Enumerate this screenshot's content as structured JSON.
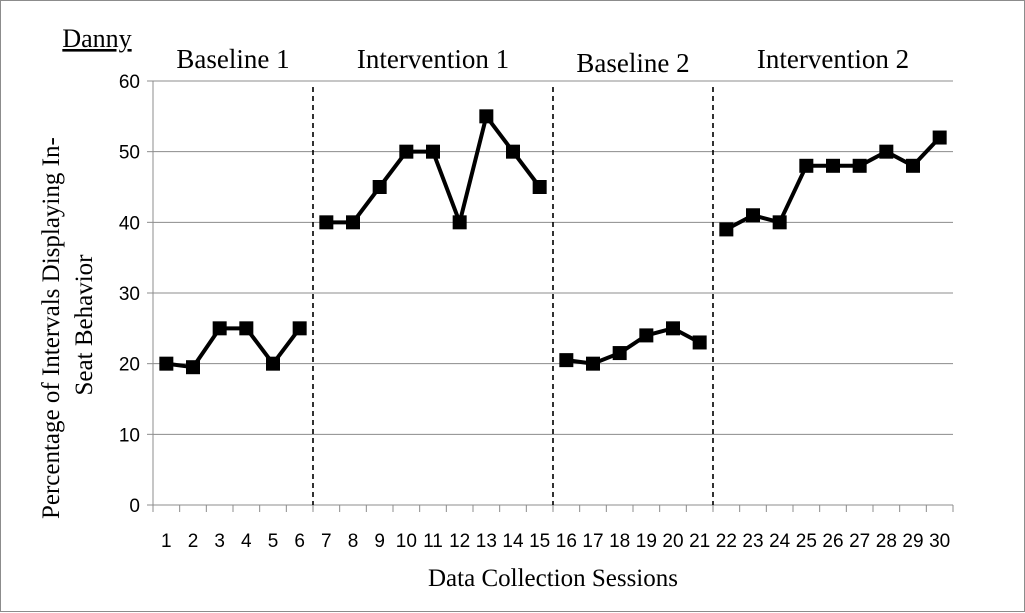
{
  "chart_data": {
    "type": "line",
    "title": "Danny",
    "xlabel": "Data Collection Sessions",
    "ylabel": "Percentage of Intervals Displaying In-Seat Behavior",
    "ylim": [
      0,
      60
    ],
    "yticks": [
      0,
      10,
      20,
      30,
      40,
      50,
      60
    ],
    "grid": "horizontal",
    "phases": [
      {
        "label": "Baseline 1",
        "sessions": [
          1,
          2,
          3,
          4,
          5,
          6
        ],
        "values": [
          20,
          19.5,
          25,
          25,
          20,
          25
        ]
      },
      {
        "label": "Intervention 1",
        "sessions": [
          7,
          8,
          9,
          10,
          11,
          12,
          13,
          14,
          15
        ],
        "values": [
          40,
          40,
          45,
          50,
          50,
          40,
          55,
          50,
          45
        ]
      },
      {
        "label": "Baseline 2",
        "sessions": [
          16,
          17,
          18,
          19,
          20,
          21
        ],
        "values": [
          20.5,
          20,
          21.5,
          24,
          25,
          23
        ]
      },
      {
        "label": "Intervention 2",
        "sessions": [
          22,
          23,
          24,
          25,
          26,
          27,
          28,
          29,
          30
        ],
        "values": [
          39,
          41,
          40,
          48,
          48,
          48,
          50,
          48,
          52
        ]
      }
    ],
    "phase_change_lines_after_session": [
      6.5,
      15.5,
      21.5
    ],
    "x_categories": [
      "1",
      "2",
      "3",
      "4",
      "5",
      "6",
      "7",
      "8",
      "9",
      "10",
      "11",
      "12",
      "13",
      "14",
      "15",
      "16",
      "17",
      "18",
      "19",
      "20",
      "21",
      "22",
      "23",
      "24",
      "25",
      "26",
      "27",
      "28",
      "29",
      "30"
    ]
  }
}
